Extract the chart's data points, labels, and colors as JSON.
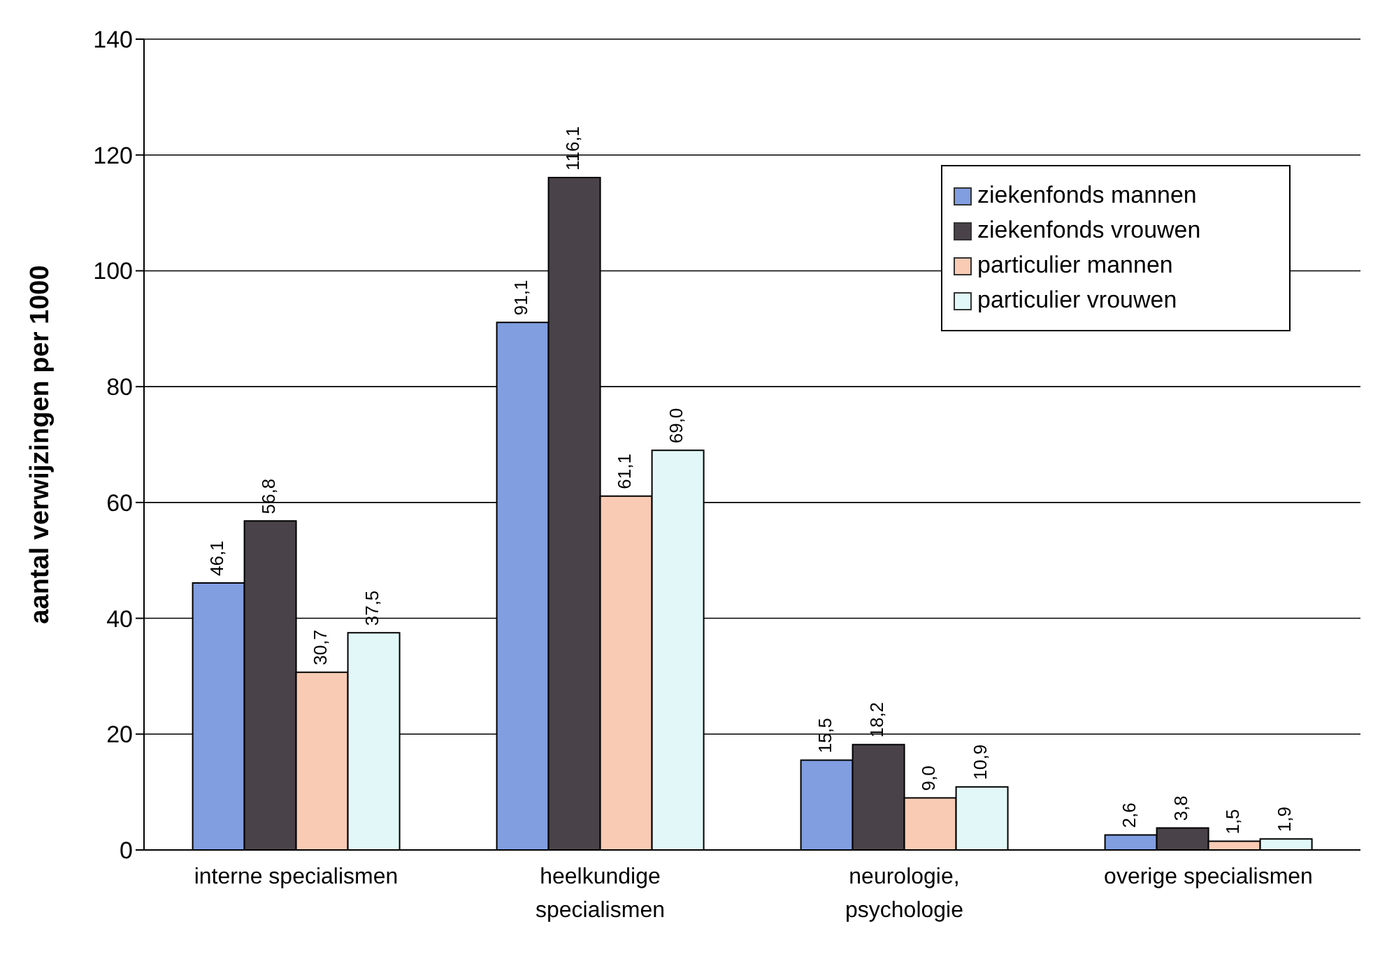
{
  "chart_data": {
    "type": "bar",
    "ylabel": "aantal verwijzingen per 1000",
    "categories": [
      "interne specialismen",
      "heelkundige specialismen",
      "neurologie, psychologie",
      "overige specialismen"
    ],
    "series": [
      {
        "name": "ziekenfonds mannen",
        "color": "#809ee0",
        "values": [
          46.1,
          91.1,
          15.5,
          2.6
        ],
        "value_labels": [
          "46,1",
          "91,1",
          "15,5",
          "2,6"
        ]
      },
      {
        "name": "ziekenfonds vrouwen",
        "color": "#4a4249",
        "values": [
          56.8,
          116.1,
          18.2,
          3.8
        ],
        "value_labels": [
          "56,8",
          "116,1",
          "18,2",
          "3,8"
        ]
      },
      {
        "name": "particulier mannen",
        "color": "#f9cbb4",
        "values": [
          30.7,
          61.1,
          9.0,
          1.5
        ],
        "value_labels": [
          "30,7",
          "61,1",
          "9,0",
          "1,5"
        ]
      },
      {
        "name": "particulier vrouwen",
        "color": "#e2f8f8",
        "values": [
          37.5,
          69.0,
          10.9,
          1.9
        ],
        "value_labels": [
          "37,5",
          "69,0",
          "10,9",
          "1,9"
        ]
      }
    ],
    "ylim": [
      0,
      140
    ],
    "yticks": [
      0,
      20,
      40,
      60,
      80,
      100,
      120,
      140
    ],
    "grid": "y",
    "legend": "top right"
  }
}
